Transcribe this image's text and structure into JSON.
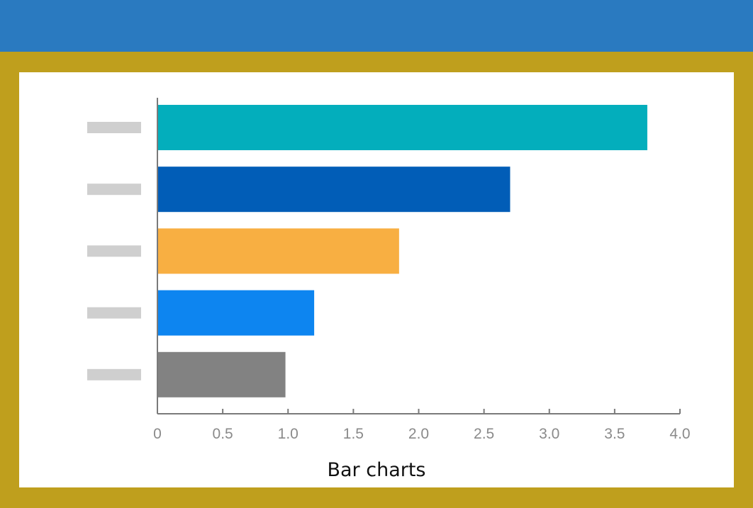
{
  "colors": {
    "banner": "#2a7ac0",
    "frame": "#bf9f1d",
    "panel": "#ffffff",
    "axis": "#7a7a7a",
    "tick_text": "#8a8a8a",
    "placeholder_label": "#cfcfcf"
  },
  "chart_data": {
    "type": "bar",
    "orientation": "horizontal",
    "title": "",
    "caption": "Bar charts",
    "xlabel": "",
    "ylabel": "",
    "xlim": [
      0,
      4.0
    ],
    "x_ticks": [
      "0",
      "0.5",
      "1.0",
      "1.5",
      "2.0",
      "2.5",
      "3.0",
      "3.5",
      "4.0"
    ],
    "x_tick_values": [
      0,
      0.5,
      1.0,
      1.5,
      2.0,
      2.5,
      3.0,
      3.5,
      4.0
    ],
    "grid": false,
    "category_labels": "placeholder bars (no text)",
    "values": [
      3.75,
      2.7,
      1.85,
      1.2,
      0.98
    ],
    "bar_colors": [
      "#03aebc",
      "#015db7",
      "#f8af42",
      "#0d85f0",
      "#828282"
    ]
  }
}
